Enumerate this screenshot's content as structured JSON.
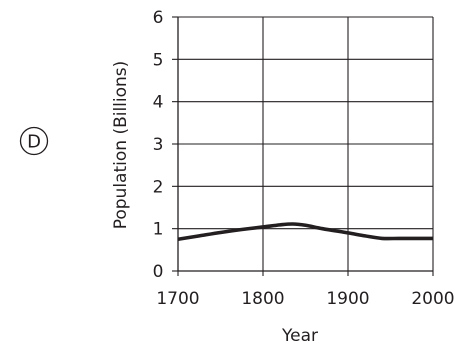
{
  "option_label": "D",
  "chart_data": {
    "type": "line",
    "title": "",
    "xlabel": "Year",
    "ylabel": "Population (Billions)",
    "xlim": [
      1700,
      2000
    ],
    "ylim": [
      0,
      6
    ],
    "x_ticks": [
      1700,
      1800,
      1900,
      2000
    ],
    "y_ticks": [
      0,
      1,
      2,
      3,
      4,
      5,
      6
    ],
    "grid": true,
    "legend": "none",
    "line_color": "#231f20",
    "grid_color": "#231f20",
    "series": [
      {
        "x": [
          1700,
          1725,
          1750,
          1775,
          1800,
          1820,
          1835,
          1850,
          1870,
          1900,
          1920,
          1940,
          1960,
          1980,
          2000
        ],
        "y": [
          0.75,
          0.83,
          0.91,
          0.98,
          1.04,
          1.09,
          1.11,
          1.08,
          1.0,
          0.9,
          0.83,
          0.77,
          0.77,
          0.77,
          0.77
        ]
      }
    ]
  }
}
